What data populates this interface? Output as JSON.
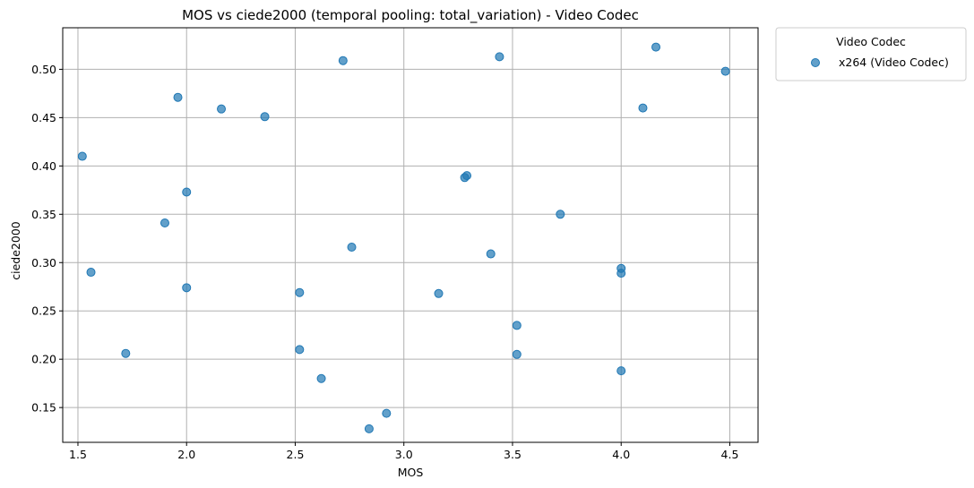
{
  "chart_data": {
    "type": "scatter",
    "title": "MOS vs ciede2000 (temporal pooling: total_variation) - Video Codec",
    "xlabel": "MOS",
    "ylabel": "ciede2000",
    "xlim": [
      1.43,
      4.63
    ],
    "ylim": [
      0.114,
      0.543
    ],
    "xticks": [
      1.5,
      2.0,
      2.5,
      3.0,
      3.5,
      4.0,
      4.5
    ],
    "xtick_labels": [
      "1.5",
      "2.0",
      "2.5",
      "3.0",
      "3.5",
      "4.0",
      "4.5"
    ],
    "yticks": [
      0.15,
      0.2,
      0.25,
      0.3,
      0.35,
      0.4,
      0.45,
      0.5
    ],
    "ytick_labels": [
      "0.15",
      "0.20",
      "0.25",
      "0.30",
      "0.35",
      "0.40",
      "0.45",
      "0.50"
    ],
    "grid": true,
    "legend": {
      "title": "Video Codec",
      "placement": "outside-top-right"
    },
    "series": [
      {
        "name": "x264 (Video Codec)",
        "color": "#1f77b4",
        "points": [
          {
            "x": 1.52,
            "y": 0.41
          },
          {
            "x": 1.56,
            "y": 0.29
          },
          {
            "x": 1.72,
            "y": 0.206
          },
          {
            "x": 1.9,
            "y": 0.341
          },
          {
            "x": 1.96,
            "y": 0.471
          },
          {
            "x": 2.0,
            "y": 0.373
          },
          {
            "x": 2.0,
            "y": 0.274
          },
          {
            "x": 2.16,
            "y": 0.459
          },
          {
            "x": 2.36,
            "y": 0.451
          },
          {
            "x": 2.52,
            "y": 0.269
          },
          {
            "x": 2.52,
            "y": 0.21
          },
          {
            "x": 2.62,
            "y": 0.18
          },
          {
            "x": 2.72,
            "y": 0.509
          },
          {
            "x": 2.76,
            "y": 0.316
          },
          {
            "x": 2.84,
            "y": 0.128
          },
          {
            "x": 2.92,
            "y": 0.144
          },
          {
            "x": 3.16,
            "y": 0.268
          },
          {
            "x": 3.28,
            "y": 0.388
          },
          {
            "x": 3.29,
            "y": 0.39
          },
          {
            "x": 3.4,
            "y": 0.309
          },
          {
            "x": 3.44,
            "y": 0.513
          },
          {
            "x": 3.52,
            "y": 0.235
          },
          {
            "x": 3.52,
            "y": 0.205
          },
          {
            "x": 3.72,
            "y": 0.35
          },
          {
            "x": 4.0,
            "y": 0.294
          },
          {
            "x": 4.0,
            "y": 0.289
          },
          {
            "x": 4.0,
            "y": 0.188
          },
          {
            "x": 4.1,
            "y": 0.46
          },
          {
            "x": 4.16,
            "y": 0.523
          },
          {
            "x": 4.48,
            "y": 0.498
          }
        ]
      }
    ]
  }
}
